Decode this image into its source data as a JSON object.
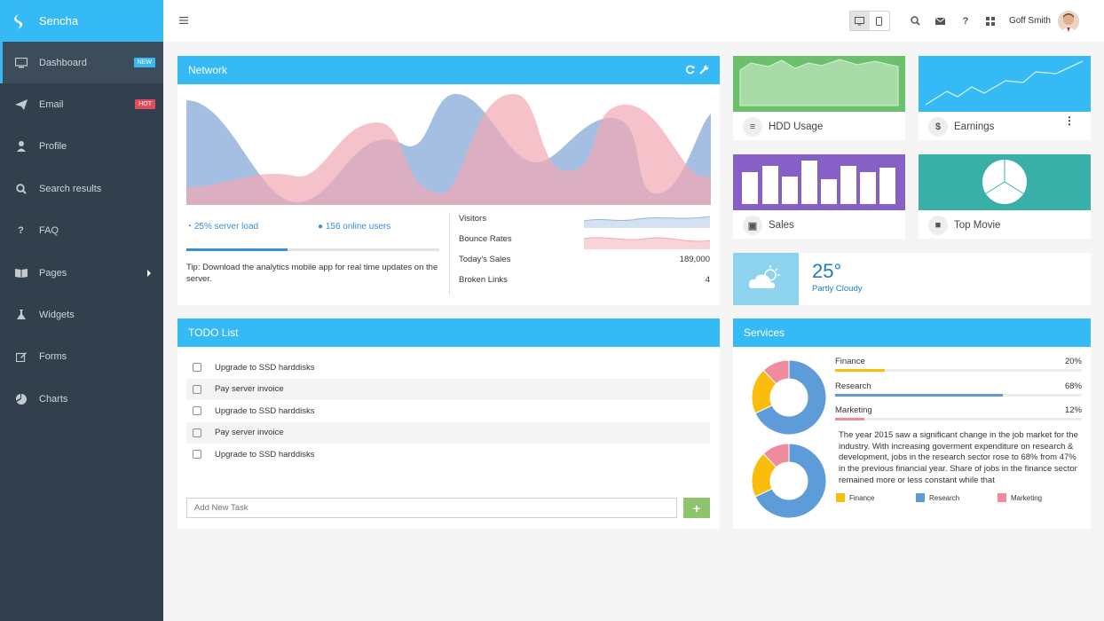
{
  "brand": {
    "name": "Sencha",
    "color": "#35baf6"
  },
  "sidebar": {
    "items": [
      {
        "label": "Dashboard",
        "icon": "desktop-icon",
        "badge": "NEW",
        "badge_color": "#35baf6",
        "active": true
      },
      {
        "label": "Email",
        "icon": "paper-plane-icon",
        "badge": "HOT",
        "badge_color": "#e34b5b"
      },
      {
        "label": "Profile",
        "icon": "user-icon"
      },
      {
        "label": "Search results",
        "icon": "search-icon"
      },
      {
        "label": "FAQ",
        "icon": "question-icon"
      },
      {
        "label": "Pages",
        "icon": "book-icon",
        "has_submenu": true
      },
      {
        "label": "Widgets",
        "icon": "flask-icon"
      },
      {
        "label": "Forms",
        "icon": "edit-icon"
      },
      {
        "label": "Charts",
        "icon": "pie-chart-icon"
      }
    ]
  },
  "topbar": {
    "user_name": "Goff Smith",
    "icons": [
      "menu-icon",
      "desktop-icon",
      "tablet-icon",
      "search-icon",
      "envelope-icon",
      "question-icon",
      "grid-icon"
    ]
  },
  "network": {
    "title": "Network",
    "server_load": "25% server load",
    "server_load_value": 0.25,
    "online_users": "156 online users",
    "progress": 0.4,
    "tip": "Tip: Download the analytics mobile app for real time updates on the server.",
    "stats": [
      {
        "label": "Visitors",
        "value": ""
      },
      {
        "label": "Bounce Rates",
        "value": ""
      },
      {
        "label": "Today's Sales",
        "value": "189,000"
      },
      {
        "label": "Broken Links",
        "value": "4"
      }
    ]
  },
  "tiles": {
    "hdd": {
      "label": "HDD Usage",
      "color": "#6bc16b"
    },
    "earnings": {
      "label": "Earnings",
      "color": "#35baf6"
    },
    "sales": {
      "label": "Sales",
      "color": "#8660c6"
    },
    "top_movie": {
      "label": "Top Movie",
      "color": "#38b0a7"
    }
  },
  "weather": {
    "temp": "25°",
    "condition": "Partly Cloudy"
  },
  "todo": {
    "title": "TODO List",
    "items": [
      "Upgrade to SSD harddisks",
      "Pay server invoice",
      "Upgrade to SSD harddisks",
      "Pay server invoice",
      "Upgrade to SSD harddisks"
    ],
    "input_placeholder": "Add New Task",
    "add_label": "+"
  },
  "services": {
    "title": "Services",
    "rows": [
      {
        "name": "Finance",
        "pct": "20%",
        "value": 0.2,
        "color": "#fbbd0b"
      },
      {
        "name": "Research",
        "pct": "68%",
        "value": 0.68,
        "color": "#5e9cd9"
      },
      {
        "name": "Marketing",
        "pct": "12%",
        "value": 0.12,
        "color": "#ef8b9c"
      }
    ],
    "description": "The year 2015 saw a significant change in the job market for the industry. With increasing goverment expenditure on research & development, jobs in the research sector rose to 68% from 47% in the previous financial year. Share of jobs in the finance sector remained more or less constant while that",
    "legend": [
      "Finance",
      "Research",
      "Marketing"
    ]
  }
}
